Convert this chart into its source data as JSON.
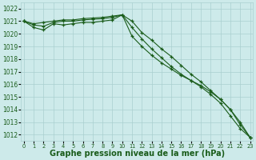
{
  "x": [
    0,
    1,
    2,
    3,
    4,
    5,
    6,
    7,
    8,
    9,
    10,
    11,
    12,
    13,
    14,
    15,
    16,
    17,
    18,
    19,
    20,
    21,
    22,
    23
  ],
  "line1": [
    1021.0,
    1020.8,
    1020.9,
    1021.0,
    1021.1,
    1021.1,
    1021.2,
    1021.25,
    1021.3,
    1021.4,
    1021.5,
    1021.0,
    1020.1,
    1019.5,
    1018.8,
    1018.2,
    1017.5,
    1016.8,
    1016.2,
    1015.5,
    1014.8,
    1014.0,
    1012.8,
    1011.8
  ],
  "line2": [
    1021.0,
    1020.7,
    1020.6,
    1020.9,
    1021.0,
    1021.0,
    1021.1,
    1021.15,
    1021.2,
    1021.3,
    1021.5,
    1020.5,
    1019.6,
    1018.8,
    1018.1,
    1017.4,
    1016.8,
    1016.3,
    1015.8,
    1015.2,
    1014.5,
    1013.5,
    1012.5,
    1011.8
  ],
  "line3": [
    1021.0,
    1020.5,
    1020.3,
    1020.8,
    1020.7,
    1020.8,
    1020.9,
    1020.9,
    1021.0,
    1021.1,
    1021.5,
    1019.8,
    1019.0,
    1018.3,
    1017.7,
    1017.2,
    1016.7,
    1016.3,
    1015.9,
    1015.4,
    1014.8,
    1014.0,
    1013.0,
    1011.8
  ],
  "line_color": "#1a5c1a",
  "bg_color": "#cdeaea",
  "grid_color": "#aacfcf",
  "xlabel": "Graphe pression niveau de la mer (hPa)",
  "ylim": [
    1011.5,
    1022.5
  ],
  "yticks": [
    1012,
    1013,
    1014,
    1015,
    1016,
    1017,
    1018,
    1019,
    1020,
    1021,
    1022
  ]
}
